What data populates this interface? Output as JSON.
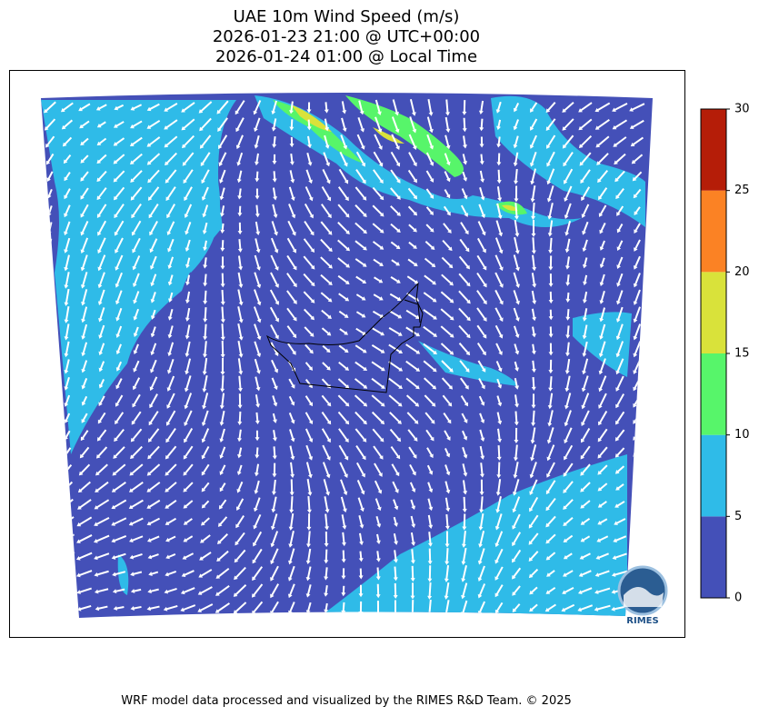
{
  "header": {
    "title_lines": [
      "UAE 10m Wind Speed (m/s)",
      "2026-01-23 21:00 @ UTC+00:00",
      "2026-01-24 01:00 @ Local Time"
    ]
  },
  "colorbar": {
    "ticks": [
      0,
      5,
      10,
      15,
      20,
      25,
      30
    ],
    "colors": [
      "#4450b8",
      "#2fbbe8",
      "#57f56a",
      "#d9e23a",
      "#fb8224",
      "#b51d08"
    ]
  },
  "logo": {
    "text": "RIMES"
  },
  "footer": "WRF model data processed and visualized by the RIMES R&D Team. © 2025"
}
